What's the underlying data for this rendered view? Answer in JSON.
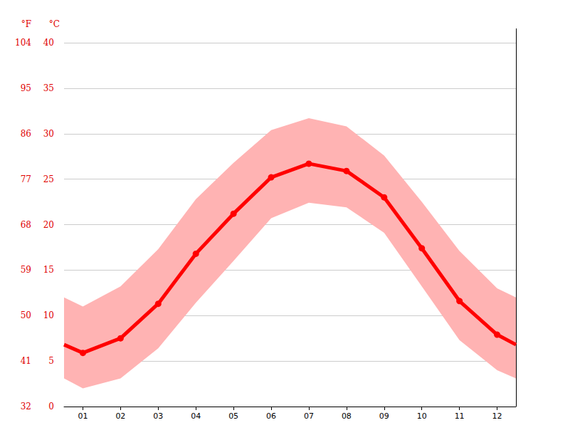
{
  "chart_data": {
    "type": "line",
    "x": [
      0.5,
      1,
      2,
      3,
      4,
      5,
      6,
      7,
      8,
      9,
      10,
      11,
      12,
      12.5
    ],
    "xlim": [
      0.5,
      12.5
    ],
    "xticks": [
      {
        "value": 1,
        "label": "01"
      },
      {
        "value": 2,
        "label": "02"
      },
      {
        "value": 3,
        "label": "03"
      },
      {
        "value": 4,
        "label": "04"
      },
      {
        "value": 5,
        "label": "05"
      },
      {
        "value": 6,
        "label": "06"
      },
      {
        "value": 7,
        "label": "07"
      },
      {
        "value": 8,
        "label": "08"
      },
      {
        "value": 9,
        "label": "09"
      },
      {
        "value": 10,
        "label": "10"
      },
      {
        "value": 11,
        "label": "11"
      },
      {
        "value": 12,
        "label": "12"
      }
    ],
    "values": [
      6.8,
      5.9,
      7.5,
      11.3,
      16.8,
      21.2,
      25.2,
      26.7,
      25.9,
      23.0,
      17.4,
      11.6,
      7.9,
      6.8
    ],
    "color": "#ff0000",
    "marker": "circle",
    "band": {
      "low": [
        3.1,
        2.0,
        3.1,
        6.4,
        11.4,
        16.0,
        20.7,
        22.4,
        21.9,
        19.1,
        13.2,
        7.3,
        4.0,
        3.1
      ],
      "high": [
        12.0,
        11.0,
        13.2,
        17.3,
        22.8,
        26.8,
        30.4,
        31.7,
        30.8,
        27.6,
        22.5,
        17.1,
        13.0,
        12.0
      ],
      "color": "#ffb3b3"
    },
    "ylabel": "°C",
    "ylim": [
      0,
      40
    ],
    "yticks": [
      0,
      5,
      10,
      15,
      20,
      25,
      30,
      35,
      40
    ],
    "y2label": "°F",
    "y2lim": [
      32,
      104
    ],
    "y2ticks": [
      32,
      41,
      50,
      59,
      68,
      77,
      86,
      95,
      104
    ],
    "grid": true
  }
}
